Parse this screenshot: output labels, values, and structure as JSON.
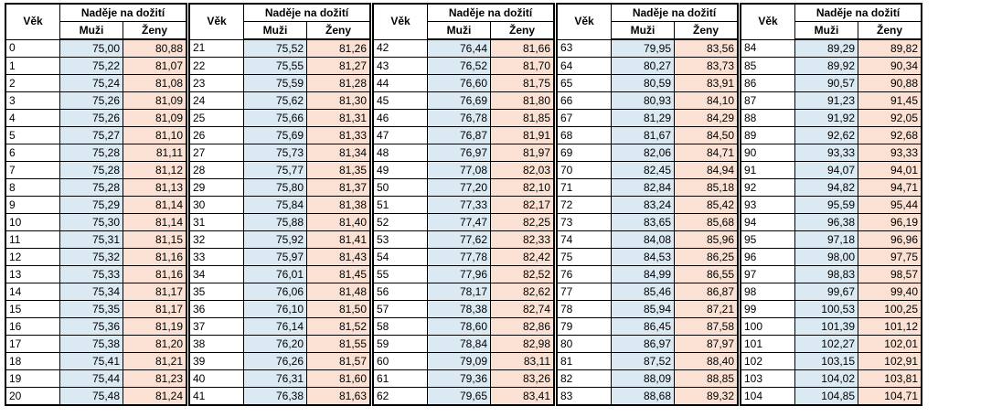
{
  "headers": {
    "age": "Věk",
    "life_expectancy": "Naděje na dožití",
    "men": "Muži",
    "women": "Ženy"
  },
  "colors": {
    "men_fill": "#dbe9f3",
    "women_fill": "#fbe1d3"
  },
  "blocks": [
    {
      "rows": [
        {
          "age": "0",
          "m": "75,00",
          "z": "80,88"
        },
        {
          "age": "1",
          "m": "75,22",
          "z": "81,07"
        },
        {
          "age": "2",
          "m": "75,24",
          "z": "81,08"
        },
        {
          "age": "3",
          "m": "75,26",
          "z": "81,09"
        },
        {
          "age": "4",
          "m": "75,26",
          "z": "81,09"
        },
        {
          "age": "5",
          "m": "75,27",
          "z": "81,10"
        },
        {
          "age": "6",
          "m": "75,28",
          "z": "81,11"
        },
        {
          "age": "7",
          "m": "75,28",
          "z": "81,12"
        },
        {
          "age": "8",
          "m": "75,28",
          "z": "81,13"
        },
        {
          "age": "9",
          "m": "75,29",
          "z": "81,14"
        },
        {
          "age": "10",
          "m": "75,30",
          "z": "81,14"
        },
        {
          "age": "11",
          "m": "75,31",
          "z": "81,15"
        },
        {
          "age": "12",
          "m": "75,32",
          "z": "81,16"
        },
        {
          "age": "13",
          "m": "75,33",
          "z": "81,16"
        },
        {
          "age": "14",
          "m": "75,34",
          "z": "81,17"
        },
        {
          "age": "15",
          "m": "75,35",
          "z": "81,17"
        },
        {
          "age": "16",
          "m": "75,36",
          "z": "81,19"
        },
        {
          "age": "17",
          "m": "75,38",
          "z": "81,20"
        },
        {
          "age": "18",
          "m": "75,41",
          "z": "81,21"
        },
        {
          "age": "19",
          "m": "75,44",
          "z": "81,23"
        },
        {
          "age": "20",
          "m": "75,48",
          "z": "81,24"
        }
      ]
    },
    {
      "rows": [
        {
          "age": "21",
          "m": "75,52",
          "z": "81,26"
        },
        {
          "age": "22",
          "m": "75,55",
          "z": "81,27"
        },
        {
          "age": "23",
          "m": "75,59",
          "z": "81,28"
        },
        {
          "age": "24",
          "m": "75,62",
          "z": "81,30"
        },
        {
          "age": "25",
          "m": "75,66",
          "z": "81,31"
        },
        {
          "age": "26",
          "m": "75,69",
          "z": "81,33"
        },
        {
          "age": "27",
          "m": "75,73",
          "z": "81,34"
        },
        {
          "age": "28",
          "m": "75,77",
          "z": "81,35"
        },
        {
          "age": "29",
          "m": "75,80",
          "z": "81,37"
        },
        {
          "age": "30",
          "m": "75,84",
          "z": "81,38"
        },
        {
          "age": "31",
          "m": "75,88",
          "z": "81,40"
        },
        {
          "age": "32",
          "m": "75,92",
          "z": "81,41"
        },
        {
          "age": "33",
          "m": "75,97",
          "z": "81,43"
        },
        {
          "age": "34",
          "m": "76,01",
          "z": "81,45"
        },
        {
          "age": "35",
          "m": "76,06",
          "z": "81,48"
        },
        {
          "age": "36",
          "m": "76,10",
          "z": "81,50"
        },
        {
          "age": "37",
          "m": "76,14",
          "z": "81,52"
        },
        {
          "age": "38",
          "m": "76,20",
          "z": "81,55"
        },
        {
          "age": "39",
          "m": "76,26",
          "z": "81,57"
        },
        {
          "age": "40",
          "m": "76,31",
          "z": "81,60"
        },
        {
          "age": "41",
          "m": "76,38",
          "z": "81,63"
        }
      ]
    },
    {
      "rows": [
        {
          "age": "42",
          "m": "76,44",
          "z": "81,66"
        },
        {
          "age": "43",
          "m": "76,52",
          "z": "81,70"
        },
        {
          "age": "44",
          "m": "76,60",
          "z": "81,75"
        },
        {
          "age": "45",
          "m": "76,69",
          "z": "81,80"
        },
        {
          "age": "46",
          "m": "76,78",
          "z": "81,85"
        },
        {
          "age": "47",
          "m": "76,87",
          "z": "81,91"
        },
        {
          "age": "48",
          "m": "76,97",
          "z": "81,97"
        },
        {
          "age": "49",
          "m": "77,08",
          "z": "82,03"
        },
        {
          "age": "50",
          "m": "77,20",
          "z": "82,10"
        },
        {
          "age": "51",
          "m": "77,33",
          "z": "82,17"
        },
        {
          "age": "52",
          "m": "77,47",
          "z": "82,25"
        },
        {
          "age": "53",
          "m": "77,62",
          "z": "82,33"
        },
        {
          "age": "54",
          "m": "77,78",
          "z": "82,42"
        },
        {
          "age": "55",
          "m": "77,96",
          "z": "82,52"
        },
        {
          "age": "56",
          "m": "78,17",
          "z": "82,62"
        },
        {
          "age": "57",
          "m": "78,38",
          "z": "82,74"
        },
        {
          "age": "58",
          "m": "78,60",
          "z": "82,86"
        },
        {
          "age": "59",
          "m": "78,84",
          "z": "82,98"
        },
        {
          "age": "60",
          "m": "79,09",
          "z": "83,11"
        },
        {
          "age": "61",
          "m": "79,36",
          "z": "83,26"
        },
        {
          "age": "62",
          "m": "79,65",
          "z": "83,41"
        }
      ]
    },
    {
      "rows": [
        {
          "age": "63",
          "m": "79,95",
          "z": "83,56"
        },
        {
          "age": "64",
          "m": "80,27",
          "z": "83,73"
        },
        {
          "age": "65",
          "m": "80,59",
          "z": "83,91"
        },
        {
          "age": "66",
          "m": "80,93",
          "z": "84,10"
        },
        {
          "age": "67",
          "m": "81,29",
          "z": "84,29"
        },
        {
          "age": "68",
          "m": "81,67",
          "z": "84,50"
        },
        {
          "age": "69",
          "m": "82,06",
          "z": "84,71"
        },
        {
          "age": "70",
          "m": "82,45",
          "z": "84,94"
        },
        {
          "age": "71",
          "m": "82,84",
          "z": "85,18"
        },
        {
          "age": "72",
          "m": "83,24",
          "z": "85,42"
        },
        {
          "age": "73",
          "m": "83,65",
          "z": "85,68"
        },
        {
          "age": "74",
          "m": "84,08",
          "z": "85,96"
        },
        {
          "age": "75",
          "m": "84,53",
          "z": "86,25"
        },
        {
          "age": "76",
          "m": "84,99",
          "z": "86,55"
        },
        {
          "age": "77",
          "m": "85,46",
          "z": "86,87"
        },
        {
          "age": "78",
          "m": "85,94",
          "z": "87,21"
        },
        {
          "age": "79",
          "m": "86,45",
          "z": "87,58"
        },
        {
          "age": "80",
          "m": "86,97",
          "z": "87,97"
        },
        {
          "age": "81",
          "m": "87,52",
          "z": "88,40"
        },
        {
          "age": "82",
          "m": "88,09",
          "z": "88,85"
        },
        {
          "age": "83",
          "m": "88,68",
          "z": "89,32"
        }
      ]
    },
    {
      "rows": [
        {
          "age": "84",
          "m": "89,29",
          "z": "89,82"
        },
        {
          "age": "85",
          "m": "89,92",
          "z": "90,34"
        },
        {
          "age": "86",
          "m": "90,57",
          "z": "90,88"
        },
        {
          "age": "87",
          "m": "91,23",
          "z": "91,45"
        },
        {
          "age": "88",
          "m": "91,92",
          "z": "92,05"
        },
        {
          "age": "89",
          "m": "92,62",
          "z": "92,68"
        },
        {
          "age": "90",
          "m": "93,33",
          "z": "93,33"
        },
        {
          "age": "91",
          "m": "94,07",
          "z": "94,01"
        },
        {
          "age": "92",
          "m": "94,82",
          "z": "94,71"
        },
        {
          "age": "93",
          "m": "95,59",
          "z": "95,44"
        },
        {
          "age": "94",
          "m": "96,38",
          "z": "96,19"
        },
        {
          "age": "95",
          "m": "97,18",
          "z": "96,96"
        },
        {
          "age": "96",
          "m": "98,00",
          "z": "97,75"
        },
        {
          "age": "97",
          "m": "98,83",
          "z": "98,57"
        },
        {
          "age": "98",
          "m": "99,67",
          "z": "99,40"
        },
        {
          "age": "99",
          "m": "100,53",
          "z": "100,25"
        },
        {
          "age": "100",
          "m": "101,39",
          "z": "101,12"
        },
        {
          "age": "101",
          "m": "102,27",
          "z": "102,01"
        },
        {
          "age": "102",
          "m": "103,15",
          "z": "102,91"
        },
        {
          "age": "103",
          "m": "104,02",
          "z": "103,81"
        },
        {
          "age": "104",
          "m": "104,85",
          "z": "104,71"
        }
      ]
    }
  ]
}
